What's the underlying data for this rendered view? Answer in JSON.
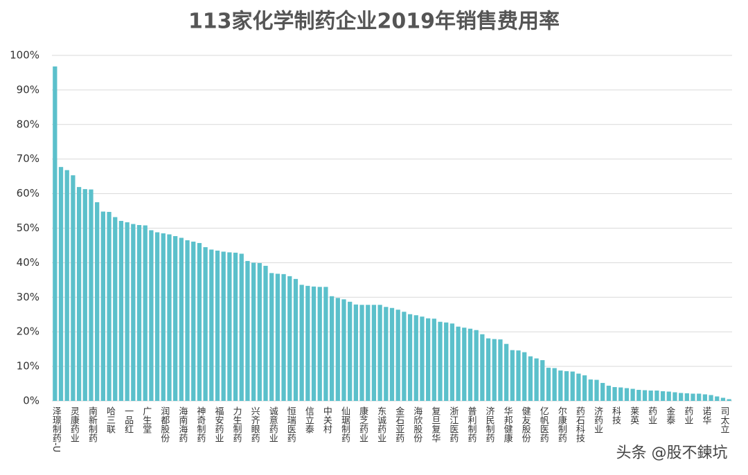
{
  "chart_data": {
    "type": "bar",
    "title": "113家化学制药企业2019年销售费用率",
    "watermark": "头条 @股不鍊坑",
    "color": "#5bc0cb",
    "grid": true,
    "ylim": [
      0,
      100
    ],
    "yticks": [
      {
        "value": 0,
        "label": "0%"
      },
      {
        "value": 10,
        "label": "10%"
      },
      {
        "value": 20,
        "label": "20%"
      },
      {
        "value": 30,
        "label": "30%"
      },
      {
        "value": 40,
        "label": "40%"
      },
      {
        "value": 50,
        "label": "50%"
      },
      {
        "value": 60,
        "label": "60%"
      },
      {
        "value": 70,
        "label": "70%"
      },
      {
        "value": 80,
        "label": "80%"
      },
      {
        "value": 90,
        "label": "90%"
      },
      {
        "value": 100,
        "label": "100%"
      }
    ],
    "categories": [
      "泽璟制药-U",
      null,
      null,
      "灵康药业",
      null,
      null,
      "南新制药",
      null,
      null,
      "哈三联",
      null,
      null,
      "一品红",
      null,
      null,
      "广生堂",
      null,
      null,
      "润都股份",
      null,
      null,
      "海南海药",
      null,
      null,
      "神奇制药",
      null,
      null,
      "福安药业",
      null,
      null,
      "力生制药",
      null,
      null,
      "兴齐眼药",
      null,
      null,
      "诚意药业",
      null,
      null,
      "恒瑞医药",
      null,
      null,
      "信立泰",
      null,
      null,
      "中关村",
      null,
      null,
      "仙琚制药",
      null,
      null,
      "康芝药业",
      null,
      null,
      "东诚药业",
      null,
      null,
      "金石亚药",
      null,
      null,
      "海欣股份",
      null,
      null,
      "复旦复华",
      null,
      null,
      "浙江医药",
      null,
      null,
      "普利制药",
      null,
      null,
      "济民制药",
      null,
      null,
      "华邦健康",
      null,
      null,
      "健友股份",
      null,
      null,
      "亿帆医药",
      null,
      null,
      "尔康制药",
      null,
      null,
      "药石科技",
      null,
      null,
      "济药业",
      null,
      null,
      "科技",
      null,
      null,
      "莱英",
      null,
      null,
      "药业",
      null,
      null,
      "金泰",
      null,
      null,
      "药业",
      null,
      null,
      "诺华",
      null,
      null,
      "司太立",
      null
    ],
    "values": [
      96.8,
      67.7,
      66.8,
      65.3,
      61.9,
      61.3,
      61.2,
      57.5,
      54.8,
      54.7,
      53.2,
      52.1,
      51.7,
      51.2,
      50.9,
      50.8,
      49.4,
      48.8,
      48.5,
      48.2,
      47.7,
      47.2,
      46.5,
      46.1,
      45.7,
      44.5,
      43.8,
      43.5,
      43.2,
      43.0,
      42.9,
      42.6,
      40.5,
      40.0,
      39.9,
      39.1,
      37.0,
      36.8,
      36.7,
      36.1,
      35.3,
      33.6,
      33.3,
      33.1,
      33.0,
      33.0,
      30.3,
      29.8,
      29.4,
      28.7,
      27.9,
      27.8,
      27.8,
      27.8,
      27.8,
      27.2,
      26.9,
      26.4,
      25.8,
      25.1,
      24.8,
      24.4,
      23.9,
      23.8,
      22.9,
      22.7,
      22.4,
      21.5,
      21.2,
      20.9,
      20.5,
      19.3,
      18.1,
      17.9,
      17.8,
      16.5,
      14.7,
      14.6,
      14.1,
      12.9,
      12.3,
      11.8,
      9.6,
      9.5,
      8.8,
      8.6,
      8.5,
      7.9,
      7.4,
      6.2,
      6.1,
      5.2,
      4.4,
      4.0,
      3.9,
      3.7,
      3.5,
      3.2,
      3.1,
      3.0,
      3.0,
      2.8,
      2.7,
      2.5,
      2.3,
      2.2,
      2.1,
      2.1,
      1.9,
      1.7,
      1.3,
      0.9,
      0.5
    ]
  }
}
